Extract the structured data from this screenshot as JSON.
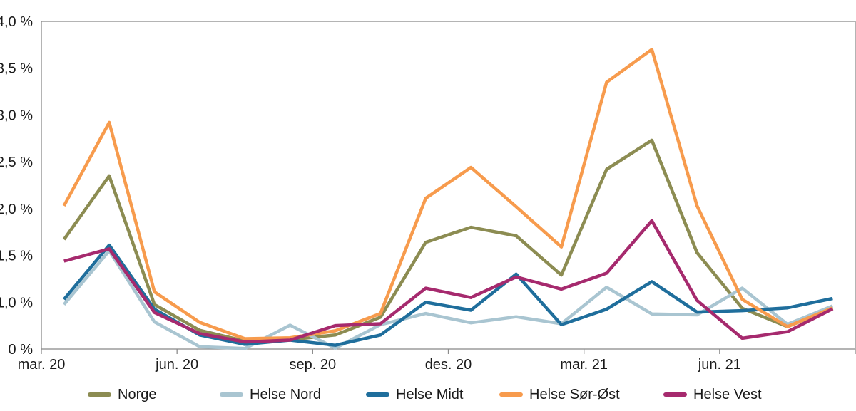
{
  "chart_data": {
    "type": "line",
    "title": "",
    "xlabel": "",
    "ylabel": "",
    "grid": false,
    "legend_position": "bottom",
    "categories": [
      "mar. 20",
      "apr. 20",
      "mai. 20",
      "jun. 20",
      "jul. 20",
      "aug. 20",
      "sep. 20",
      "okt. 20",
      "nov. 20",
      "des. 20",
      "jan. 21",
      "feb. 21",
      "mar. 21",
      "apr. 21",
      "mai. 21",
      "jun. 21",
      "jul. 21",
      "aug. 21"
    ],
    "x_axis": {
      "shown_tick_labels": [
        "mar. 20",
        "jun. 20",
        "sep. 20",
        "des. 20",
        "mar. 21",
        "jun. 21"
      ],
      "tick_label_every_n_months": 3
    },
    "y_axis": {
      "tick_labels": [
        "4,0 %",
        "3,5 %",
        "3,0 %",
        "2,5 %",
        "2,0 %",
        "1,5 %",
        "1,0 %",
        "0 %"
      ],
      "unit": "%",
      "max": 4.0,
      "min": 0,
      "note": "labels equally spaced; bottom interval spans 1,0 % to 0 % in one step"
    },
    "series": [
      {
        "name": "Norge",
        "color": "#8C8C52",
        "values": [
          1.67,
          2.35,
          0.95,
          0.4,
          0.17,
          0.2,
          0.3,
          0.68,
          1.64,
          1.8,
          1.71,
          1.29,
          2.42,
          2.73,
          1.53,
          0.87,
          0.48,
          0.87
        ]
      },
      {
        "name": "Helse Nord",
        "color": "#A9C5D1",
        "values": [
          0.95,
          1.55,
          0.58,
          0.05,
          0.01,
          0.51,
          0.02,
          0.52,
          0.76,
          0.56,
          0.69,
          0.54,
          1.16,
          0.75,
          0.73,
          1.15,
          0.53,
          0.92
        ]
      },
      {
        "name": "Helse Midt",
        "color": "#1F6E9C",
        "values": [
          1.03,
          1.61,
          0.85,
          0.3,
          0.1,
          0.19,
          0.08,
          0.3,
          1.0,
          0.83,
          1.3,
          0.52,
          0.85,
          1.22,
          0.79,
          0.82,
          0.88,
          1.04
        ]
      },
      {
        "name": "Helse Sør-Øst",
        "color": "#F79B4D",
        "values": [
          2.03,
          2.92,
          1.11,
          0.57,
          0.22,
          0.24,
          0.39,
          0.76,
          2.11,
          2.44,
          2.02,
          1.59,
          3.35,
          3.7,
          2.03,
          1.03,
          0.48,
          0.88
        ]
      },
      {
        "name": "Helse Vest",
        "color": "#A62A6E",
        "values": [
          1.44,
          1.57,
          0.78,
          0.33,
          0.15,
          0.19,
          0.5,
          0.54,
          1.15,
          1.05,
          1.27,
          1.14,
          1.31,
          1.87,
          1.02,
          0.23,
          0.37,
          0.86
        ]
      }
    ],
    "style": {
      "line_width": 4.5,
      "border_color": "#8C8C8C",
      "text_color": "#1a1a1a"
    }
  }
}
